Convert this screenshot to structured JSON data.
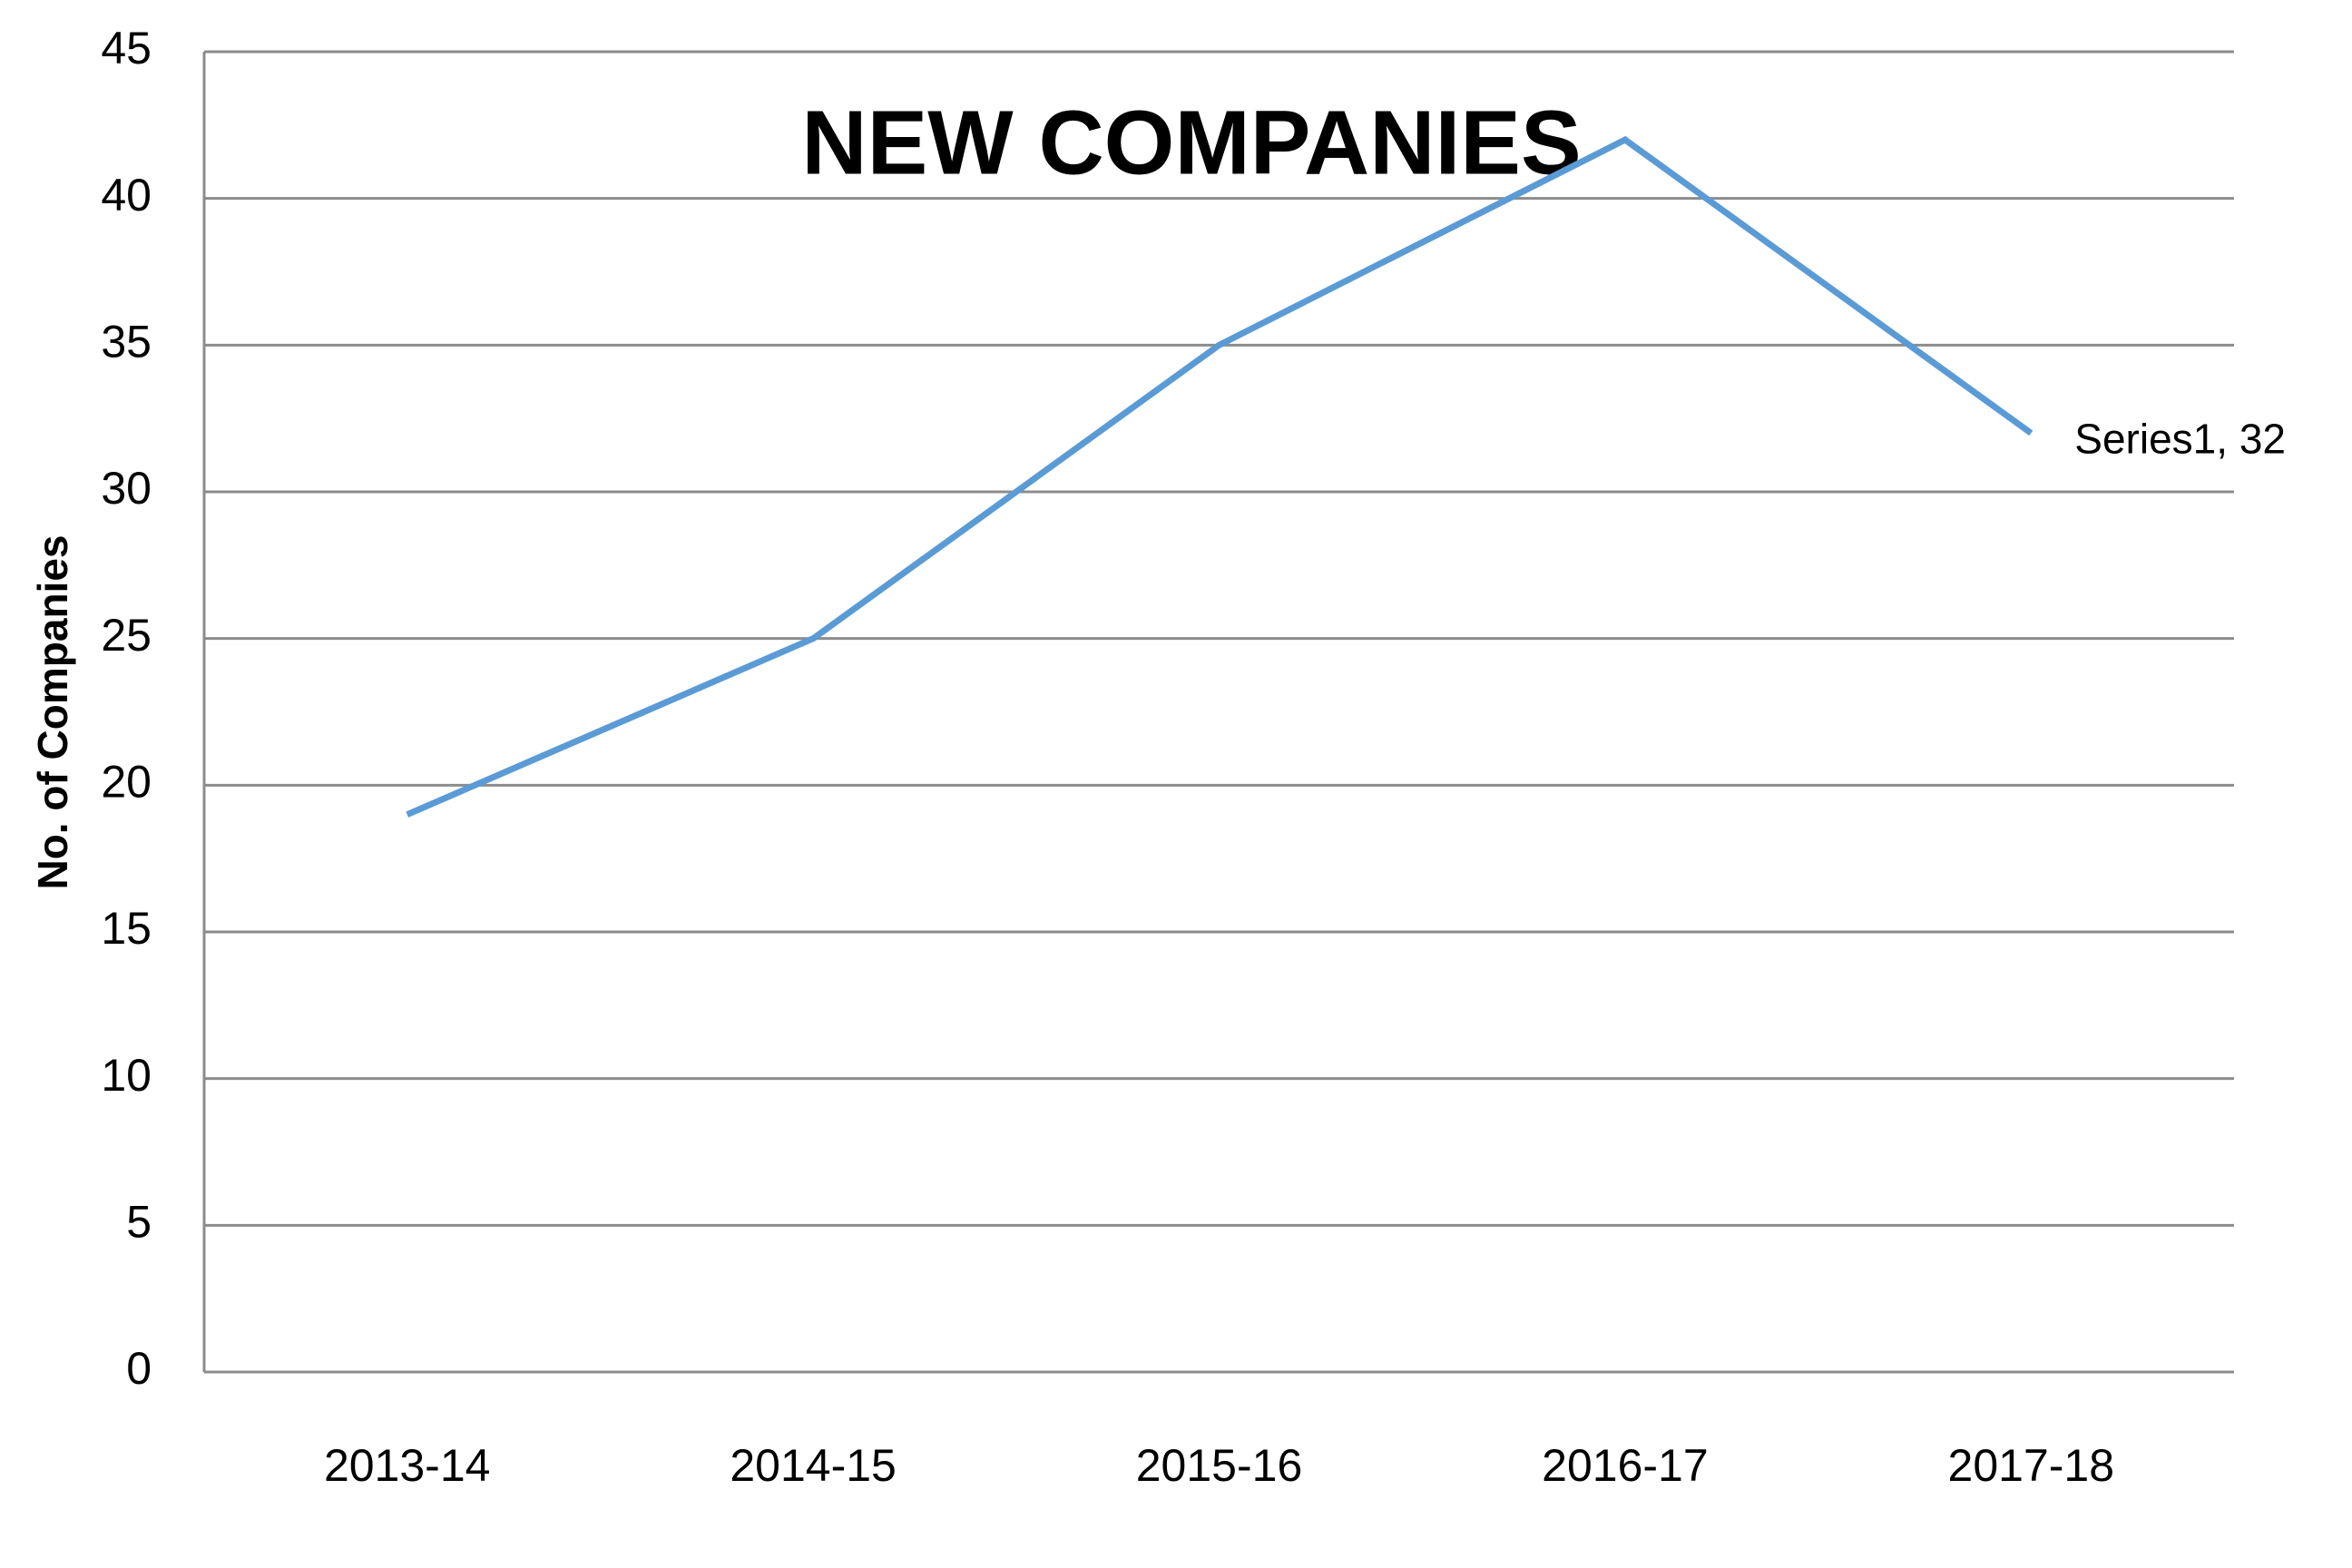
{
  "chart_data": {
    "type": "line",
    "title": "NEW COMPANIES",
    "y_label": "No. of Companies",
    "categories": [
      "2013-14",
      "2014-15",
      "2015-16",
      "2016-17",
      "2017-18"
    ],
    "series": [
      {
        "name": "Series1",
        "color": "#5b9bd5",
        "values": [
          19,
          25,
          35,
          42,
          32
        ],
        "value_labels": [
          null,
          null,
          null,
          null,
          "Series1, 32"
        ]
      }
    ],
    "ylim": [
      0,
      45
    ],
    "yticks": [
      0,
      5,
      10,
      15,
      20,
      25,
      30,
      35,
      40,
      45
    ],
    "grid": true
  }
}
